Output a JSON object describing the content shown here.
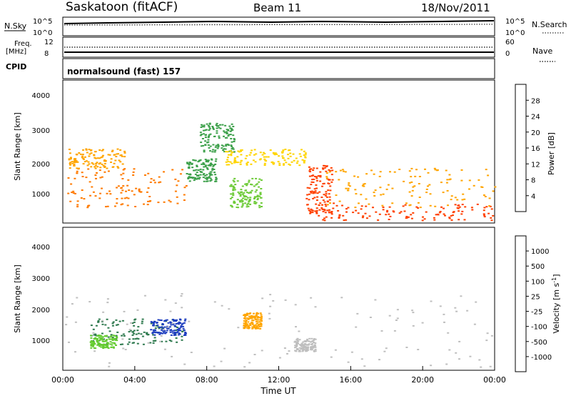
{
  "header": {
    "station": "Saskatoon (fitACF)",
    "beam": "Beam 11",
    "date": "18/Nov/2011"
  },
  "strips": {
    "nsky": {
      "label": "N.Sky",
      "ticks_left": [
        "10^5",
        "10^0"
      ],
      "ticks_right": [
        "10^5",
        "10^0"
      ],
      "right_label": "N.Search"
    },
    "freq": {
      "label_top": "Freq.",
      "label_unit": "[MHz]",
      "ticks_left": [
        "12",
        "8"
      ],
      "ticks_right": [
        "60",
        "0"
      ],
      "right_label": "Nave"
    },
    "cpid": {
      "label": "CPID",
      "text": "normalsound (fast) 157"
    }
  },
  "panels": {
    "power": {
      "ylabel": "Slant Range [km]",
      "yticks": [
        "4000",
        "3000",
        "2000",
        "1000"
      ],
      "colorbar_label": "Power [dB]",
      "colorbar_ticks": [
        "28",
        "24",
        "20",
        "16",
        "12",
        "8",
        "4"
      ],
      "colors": [
        "#0000ff",
        "#1e4fb0",
        "#2f7a4f",
        "#3ca04a",
        "#6ecb39",
        "#ffd400",
        "#ffa500",
        "#ff7a00",
        "#ff4000",
        "#ff0000"
      ]
    },
    "velocity": {
      "ylabel": "Slant Range [km]",
      "yticks": [
        "4000",
        "3000",
        "2000",
        "1000"
      ],
      "colorbar_label": "Velocity [m s",
      "colorbar_label_sup": "-1",
      "colorbar_label_end": "]",
      "colorbar_ticks": [
        "1000",
        "500",
        "100",
        "25",
        "-25",
        "-100",
        "-500",
        "-1000"
      ],
      "colors": [
        "#1f3fbf",
        "#2f6ab0",
        "#2f7a4f",
        "#66cc33",
        "#bfbfbf",
        "#bfbfbf",
        "#ffa500",
        "#ff7a00",
        "#ff3300",
        "#e60000"
      ]
    }
  },
  "xaxis": {
    "ticks": [
      "00:00",
      "04:00",
      "08:00",
      "12:00",
      "16:00",
      "20:00",
      "00:00"
    ],
    "label": "Time UT"
  },
  "chart_data": {
    "type": "heatmap",
    "title": "Saskatoon (fitACF) Beam 11 18/Nov/2011",
    "xlabel": "Time UT",
    "ylabel": "Slant Range [km]",
    "xlim_hours": [
      0,
      24
    ],
    "ylim_km": [
      200,
      4600
    ],
    "panels": [
      {
        "name": "Power",
        "unit": "dB",
        "color_scale": [
          4,
          8,
          12,
          16,
          20,
          24,
          28
        ],
        "regions": [
          {
            "t0": 0.2,
            "t1": 7.0,
            "r0": 700,
            "r1": 1900,
            "level": 24
          },
          {
            "t0": 0.3,
            "t1": 3.5,
            "r0": 1900,
            "r1": 2500,
            "level": 20
          },
          {
            "t0": 6.8,
            "t1": 8.5,
            "r0": 1500,
            "r1": 2200,
            "level": 8
          },
          {
            "t0": 7.6,
            "t1": 9.5,
            "r0": 2400,
            "r1": 3300,
            "level": 8
          },
          {
            "t0": 9.0,
            "t1": 13.5,
            "r0": 2000,
            "r1": 2500,
            "level": 16
          },
          {
            "t0": 9.2,
            "t1": 11.0,
            "r0": 700,
            "r1": 1600,
            "level": 12
          },
          {
            "t0": 13.5,
            "t1": 15.0,
            "r0": 500,
            "r1": 2000,
            "level": 28
          },
          {
            "t0": 14.0,
            "t1": 23.9,
            "r0": 300,
            "r1": 800,
            "level": 28
          },
          {
            "t0": 14.5,
            "t1": 24.0,
            "r0": 700,
            "r1": 1900,
            "level": 20
          }
        ]
      },
      {
        "name": "Velocity",
        "unit": "m s^-1",
        "color_scale": [
          1000,
          500,
          100,
          25,
          -25,
          -100,
          -500,
          -1000
        ],
        "regions": [
          {
            "t0": 1.5,
            "t1": 6.8,
            "r0": 1000,
            "r1": 1800,
            "level": 100
          },
          {
            "t0": 1.5,
            "t1": 3.0,
            "r0": 900,
            "r1": 1300,
            "level": 25
          },
          {
            "t0": 4.8,
            "t1": 6.8,
            "r0": 1300,
            "r1": 1800,
            "level": 1000
          },
          {
            "t0": 0.0,
            "t1": 24.0,
            "r0": 300,
            "r1": 2600,
            "level": 0
          },
          {
            "t0": 10.0,
            "t1": 11.0,
            "r0": 1500,
            "r1": 2000,
            "level": -500
          },
          {
            "t0": 12.8,
            "t1": 14.0,
            "r0": 800,
            "r1": 1200,
            "level": -100
          }
        ]
      }
    ]
  }
}
